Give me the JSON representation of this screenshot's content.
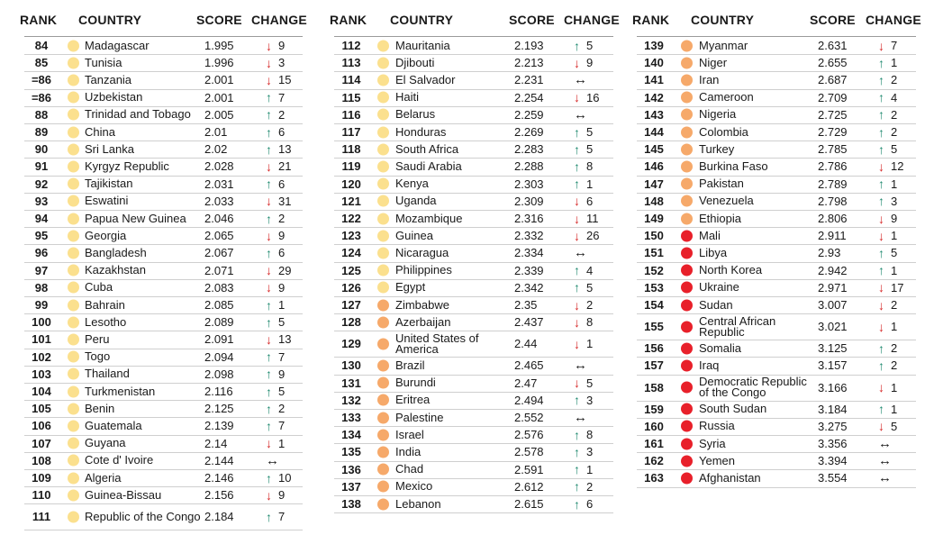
{
  "headers": {
    "rank": "RANK",
    "country": "COUNTRY",
    "score": "SCORE",
    "change": "CHANGE"
  },
  "colors": {
    "yellow": "#fbe08e",
    "orange": "#f6a96a",
    "red": "#e8202a",
    "up": "#1f8a70",
    "down": "#d62828"
  },
  "columns": [
    [
      {
        "rank": "84",
        "country": "Madagascar",
        "score": "1.995",
        "dir": "down",
        "change": "9",
        "level": "yellow"
      },
      {
        "rank": "85",
        "country": "Tunisia",
        "score": "1.996",
        "dir": "down",
        "change": "3",
        "level": "yellow"
      },
      {
        "rank": "=86",
        "country": "Tanzania",
        "score": "2.001",
        "dir": "down",
        "change": "15",
        "level": "yellow"
      },
      {
        "rank": "=86",
        "country": "Uzbekistan",
        "score": "2.001",
        "dir": "up",
        "change": "7",
        "level": "yellow"
      },
      {
        "rank": "88",
        "country": "Trinidad and Tobago",
        "score": "2.005",
        "dir": "up",
        "change": "2",
        "level": "yellow"
      },
      {
        "rank": "89",
        "country": "China",
        "score": "2.01",
        "dir": "up",
        "change": "6",
        "level": "yellow"
      },
      {
        "rank": "90",
        "country": "Sri Lanka",
        "score": "2.02",
        "dir": "up",
        "change": "13",
        "level": "yellow"
      },
      {
        "rank": "91",
        "country": "Kyrgyz Republic",
        "score": "2.028",
        "dir": "down",
        "change": "21",
        "level": "yellow"
      },
      {
        "rank": "92",
        "country": "Tajikistan",
        "score": "2.031",
        "dir": "up",
        "change": "6",
        "level": "yellow"
      },
      {
        "rank": "93",
        "country": "Eswatini",
        "score": "2.033",
        "dir": "down",
        "change": "31",
        "level": "yellow"
      },
      {
        "rank": "94",
        "country": "Papua New Guinea",
        "score": "2.046",
        "dir": "up",
        "change": "2",
        "level": "yellow"
      },
      {
        "rank": "95",
        "country": "Georgia",
        "score": "2.065",
        "dir": "down",
        "change": "9",
        "level": "yellow"
      },
      {
        "rank": "96",
        "country": "Bangladesh",
        "score": "2.067",
        "dir": "up",
        "change": "6",
        "level": "yellow"
      },
      {
        "rank": "97",
        "country": "Kazakhstan",
        "score": "2.071",
        "dir": "down",
        "change": "29",
        "level": "yellow"
      },
      {
        "rank": "98",
        "country": "Cuba",
        "score": "2.083",
        "dir": "down",
        "change": "9",
        "level": "yellow"
      },
      {
        "rank": "99",
        "country": "Bahrain",
        "score": "2.085",
        "dir": "up",
        "change": "1",
        "level": "yellow"
      },
      {
        "rank": "100",
        "country": "Lesotho",
        "score": "2.089",
        "dir": "up",
        "change": "5",
        "level": "yellow"
      },
      {
        "rank": "101",
        "country": "Peru",
        "score": "2.091",
        "dir": "down",
        "change": "13",
        "level": "yellow"
      },
      {
        "rank": "102",
        "country": "Togo",
        "score": "2.094",
        "dir": "up",
        "change": "7",
        "level": "yellow"
      },
      {
        "rank": "103",
        "country": "Thailand",
        "score": "2.098",
        "dir": "up",
        "change": "9",
        "level": "yellow"
      },
      {
        "rank": "104",
        "country": "Turkmenistan",
        "score": "2.116",
        "dir": "up",
        "change": "5",
        "level": "yellow"
      },
      {
        "rank": "105",
        "country": "Benin",
        "score": "2.125",
        "dir": "up",
        "change": "2",
        "level": "yellow"
      },
      {
        "rank": "106",
        "country": "Guatemala",
        "score": "2.139",
        "dir": "up",
        "change": "7",
        "level": "yellow"
      },
      {
        "rank": "107",
        "country": "Guyana",
        "score": "2.14",
        "dir": "down",
        "change": "1",
        "level": "yellow"
      },
      {
        "rank": "108",
        "country": "Cote d' Ivoire",
        "score": "2.144",
        "dir": "same",
        "change": "",
        "level": "yellow"
      },
      {
        "rank": "109",
        "country": "Algeria",
        "score": "2.146",
        "dir": "up",
        "change": "10",
        "level": "yellow"
      },
      {
        "rank": "110",
        "country": "Guinea-Bissau",
        "score": "2.156",
        "dir": "down",
        "change": "9",
        "level": "yellow"
      },
      {
        "rank": "111",
        "country": "Republic of the Congo",
        "score": "2.184",
        "dir": "up",
        "change": "7",
        "level": "yellow"
      }
    ],
    [
      {
        "rank": "112",
        "country": "Mauritania",
        "score": "2.193",
        "dir": "up",
        "change": "5",
        "level": "yellow"
      },
      {
        "rank": "113",
        "country": "Djibouti",
        "score": "2.213",
        "dir": "down",
        "change": "9",
        "level": "yellow"
      },
      {
        "rank": "114",
        "country": "El Salvador",
        "score": "2.231",
        "dir": "same",
        "change": "",
        "level": "yellow"
      },
      {
        "rank": "115",
        "country": "Haiti",
        "score": "2.254",
        "dir": "down",
        "change": "16",
        "level": "yellow"
      },
      {
        "rank": "116",
        "country": "Belarus",
        "score": "2.259",
        "dir": "same",
        "change": "",
        "level": "yellow"
      },
      {
        "rank": "117",
        "country": "Honduras",
        "score": "2.269",
        "dir": "up",
        "change": "5",
        "level": "yellow"
      },
      {
        "rank": "118",
        "country": "South Africa",
        "score": "2.283",
        "dir": "up",
        "change": "5",
        "level": "yellow"
      },
      {
        "rank": "119",
        "country": "Saudi Arabia",
        "score": "2.288",
        "dir": "up",
        "change": "8",
        "level": "yellow"
      },
      {
        "rank": "120",
        "country": "Kenya",
        "score": "2.303",
        "dir": "up",
        "change": "1",
        "level": "yellow"
      },
      {
        "rank": "121",
        "country": "Uganda",
        "score": "2.309",
        "dir": "down",
        "change": "6",
        "level": "yellow"
      },
      {
        "rank": "122",
        "country": "Mozambique",
        "score": "2.316",
        "dir": "down",
        "change": "11",
        "level": "yellow"
      },
      {
        "rank": "123",
        "country": "Guinea",
        "score": "2.332",
        "dir": "down",
        "change": "26",
        "level": "yellow"
      },
      {
        "rank": "124",
        "country": "Nicaragua",
        "score": "2.334",
        "dir": "same",
        "change": "",
        "level": "yellow"
      },
      {
        "rank": "125",
        "country": "Philippines",
        "score": "2.339",
        "dir": "up",
        "change": "4",
        "level": "yellow"
      },
      {
        "rank": "126",
        "country": "Egypt",
        "score": "2.342",
        "dir": "up",
        "change": "5",
        "level": "yellow"
      },
      {
        "rank": "127",
        "country": "Zimbabwe",
        "score": "2.35",
        "dir": "down",
        "change": "2",
        "level": "orange"
      },
      {
        "rank": "128",
        "country": "Azerbaijan",
        "score": "2.437",
        "dir": "down",
        "change": "8",
        "level": "orange"
      },
      {
        "rank": "129",
        "country": "United States of America",
        "score": "2.44",
        "dir": "down",
        "change": "1",
        "level": "orange"
      },
      {
        "rank": "130",
        "country": "Brazil",
        "score": "2.465",
        "dir": "same",
        "change": "",
        "level": "orange"
      },
      {
        "rank": "131",
        "country": "Burundi",
        "score": "2.47",
        "dir": "down",
        "change": "5",
        "level": "orange"
      },
      {
        "rank": "132",
        "country": "Eritrea",
        "score": "2.494",
        "dir": "up",
        "change": "3",
        "level": "orange"
      },
      {
        "rank": "133",
        "country": "Palestine",
        "score": "2.552",
        "dir": "same",
        "change": "",
        "level": "orange"
      },
      {
        "rank": "134",
        "country": "Israel",
        "score": "2.576",
        "dir": "up",
        "change": "8",
        "level": "orange"
      },
      {
        "rank": "135",
        "country": "India",
        "score": "2.578",
        "dir": "up",
        "change": "3",
        "level": "orange"
      },
      {
        "rank": "136",
        "country": "Chad",
        "score": "2.591",
        "dir": "up",
        "change": "1",
        "level": "orange"
      },
      {
        "rank": "137",
        "country": "Mexico",
        "score": "2.612",
        "dir": "up",
        "change": "2",
        "level": "orange"
      },
      {
        "rank": "138",
        "country": "Lebanon",
        "score": "2.615",
        "dir": "up",
        "change": "6",
        "level": "orange"
      }
    ],
    [
      {
        "rank": "139",
        "country": "Myanmar",
        "score": "2.631",
        "dir": "down",
        "change": "7",
        "level": "orange"
      },
      {
        "rank": "140",
        "country": "Niger",
        "score": "2.655",
        "dir": "up",
        "change": "1",
        "level": "orange"
      },
      {
        "rank": "141",
        "country": "Iran",
        "score": "2.687",
        "dir": "up",
        "change": "2",
        "level": "orange"
      },
      {
        "rank": "142",
        "country": "Cameroon",
        "score": "2.709",
        "dir": "up",
        "change": "4",
        "level": "orange"
      },
      {
        "rank": "143",
        "country": "Nigeria",
        "score": "2.725",
        "dir": "up",
        "change": "2",
        "level": "orange"
      },
      {
        "rank": "144",
        "country": "Colombia",
        "score": "2.729",
        "dir": "up",
        "change": "2",
        "level": "orange"
      },
      {
        "rank": "145",
        "country": "Turkey",
        "score": "2.785",
        "dir": "up",
        "change": "5",
        "level": "orange"
      },
      {
        "rank": "146",
        "country": "Burkina Faso",
        "score": "2.786",
        "dir": "down",
        "change": "12",
        "level": "orange"
      },
      {
        "rank": "147",
        "country": "Pakistan",
        "score": "2.789",
        "dir": "up",
        "change": "1",
        "level": "orange"
      },
      {
        "rank": "148",
        "country": "Venezuela",
        "score": "2.798",
        "dir": "up",
        "change": "3",
        "level": "orange"
      },
      {
        "rank": "149",
        "country": "Ethiopia",
        "score": "2.806",
        "dir": "down",
        "change": "9",
        "level": "orange"
      },
      {
        "rank": "150",
        "country": "Mali",
        "score": "2.911",
        "dir": "down",
        "change": "1",
        "level": "red"
      },
      {
        "rank": "151",
        "country": "Libya",
        "score": "2.93",
        "dir": "up",
        "change": "5",
        "level": "red"
      },
      {
        "rank": "152",
        "country": "North Korea",
        "score": "2.942",
        "dir": "up",
        "change": "1",
        "level": "red"
      },
      {
        "rank": "153",
        "country": "Ukraine",
        "score": "2.971",
        "dir": "down",
        "change": "17",
        "level": "red"
      },
      {
        "rank": "154",
        "country": "Sudan",
        "score": "3.007",
        "dir": "down",
        "change": "2",
        "level": "red"
      },
      {
        "rank": "155",
        "country": "Central African Republic",
        "score": "3.021",
        "dir": "down",
        "change": "1",
        "level": "red"
      },
      {
        "rank": "156",
        "country": "Somalia",
        "score": "3.125",
        "dir": "up",
        "change": "2",
        "level": "red"
      },
      {
        "rank": "157",
        "country": "Iraq",
        "score": "3.157",
        "dir": "up",
        "change": "2",
        "level": "red"
      },
      {
        "rank": "158",
        "country": "Democratic Republic of the Congo",
        "score": "3.166",
        "dir": "down",
        "change": "1",
        "level": "red"
      },
      {
        "rank": "159",
        "country": "South Sudan",
        "score": "3.184",
        "dir": "up",
        "change": "1",
        "level": "red"
      },
      {
        "rank": "160",
        "country": "Russia",
        "score": "3.275",
        "dir": "down",
        "change": "5",
        "level": "red"
      },
      {
        "rank": "161",
        "country": "Syria",
        "score": "3.356",
        "dir": "same",
        "change": "",
        "level": "red"
      },
      {
        "rank": "162",
        "country": "Yemen",
        "score": "3.394",
        "dir": "same",
        "change": "",
        "level": "red"
      },
      {
        "rank": "163",
        "country": "Afghanistan",
        "score": "3.554",
        "dir": "same",
        "change": "",
        "level": "red"
      }
    ]
  ]
}
